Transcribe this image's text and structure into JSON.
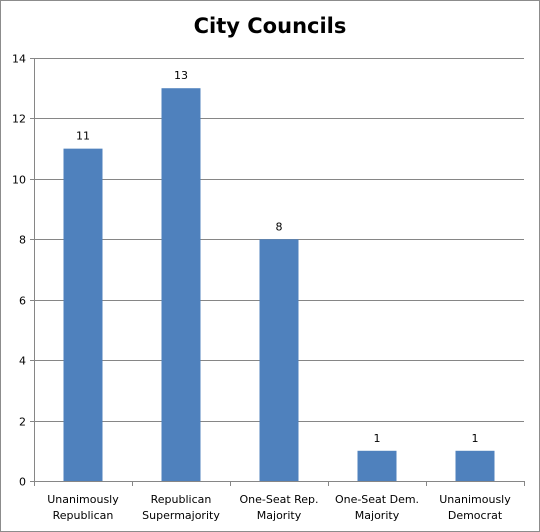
{
  "chart_data": {
    "type": "bar",
    "title": "City Councils",
    "categories": [
      [
        "Unanimously",
        "Republican"
      ],
      [
        "Republican",
        "Supermajority"
      ],
      [
        "One-Seat Rep.",
        "Majority"
      ],
      [
        "One-Seat Dem.",
        "Majority"
      ],
      [
        "Unanimously",
        "Democrat"
      ]
    ],
    "values": [
      11,
      13,
      8,
      1,
      1
    ],
    "data_labels": [
      "11",
      "13",
      "8",
      "1",
      "1"
    ],
    "yticks": [
      "0",
      "2",
      "4",
      "6",
      "8",
      "10",
      "12",
      "14"
    ],
    "ylim": [
      0,
      14
    ],
    "grid": true,
    "legend": "none",
    "bar_color": "#4f81bd",
    "grid_color": "#868686"
  }
}
